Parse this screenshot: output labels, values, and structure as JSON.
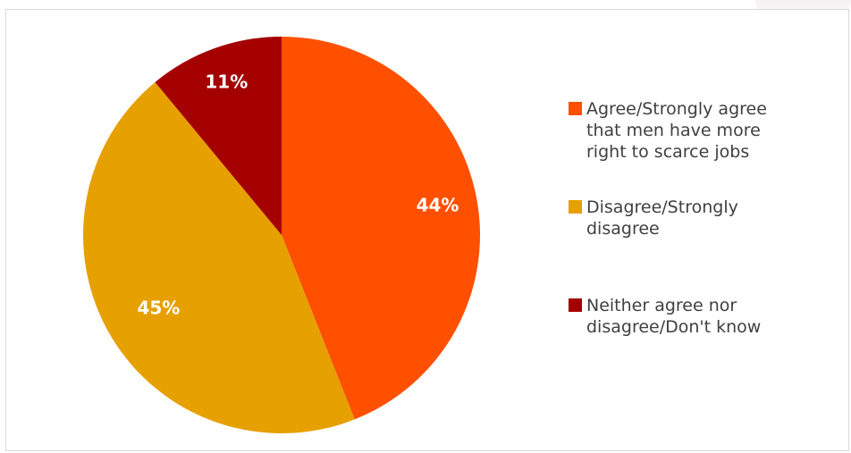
{
  "chart_data": {
    "type": "pie",
    "title": "",
    "legend_position": "right",
    "slices": [
      {
        "label": "Agree/Strongly agree that men have more right to scarce jobs",
        "value": 44,
        "display": "44%",
        "color": "#FF5000"
      },
      {
        "label": "Disagree/Strongly disagree",
        "value": 45,
        "display": "45%",
        "color": "#E6A000"
      },
      {
        "label": "Neither agree nor disagree/Don't know",
        "value": 11,
        "display": "11%",
        "color": "#A50000"
      }
    ],
    "legend": {
      "items": [
        {
          "lines": [
            "Agree/Strongly agree",
            "that men have more",
            "right to scarce jobs"
          ],
          "color": "#FF5000"
        },
        {
          "lines": [
            "Disagree/Strongly",
            "disagree"
          ],
          "color": "#E6A000"
        },
        {
          "lines": [
            "Neither agree nor",
            "disagree/Don't know"
          ],
          "color": "#A50000"
        }
      ]
    },
    "label_colors": {
      "44%": "#FFFFFF",
      "45%": "#FFFFFF",
      "11%": "#FFFFFF"
    }
  }
}
